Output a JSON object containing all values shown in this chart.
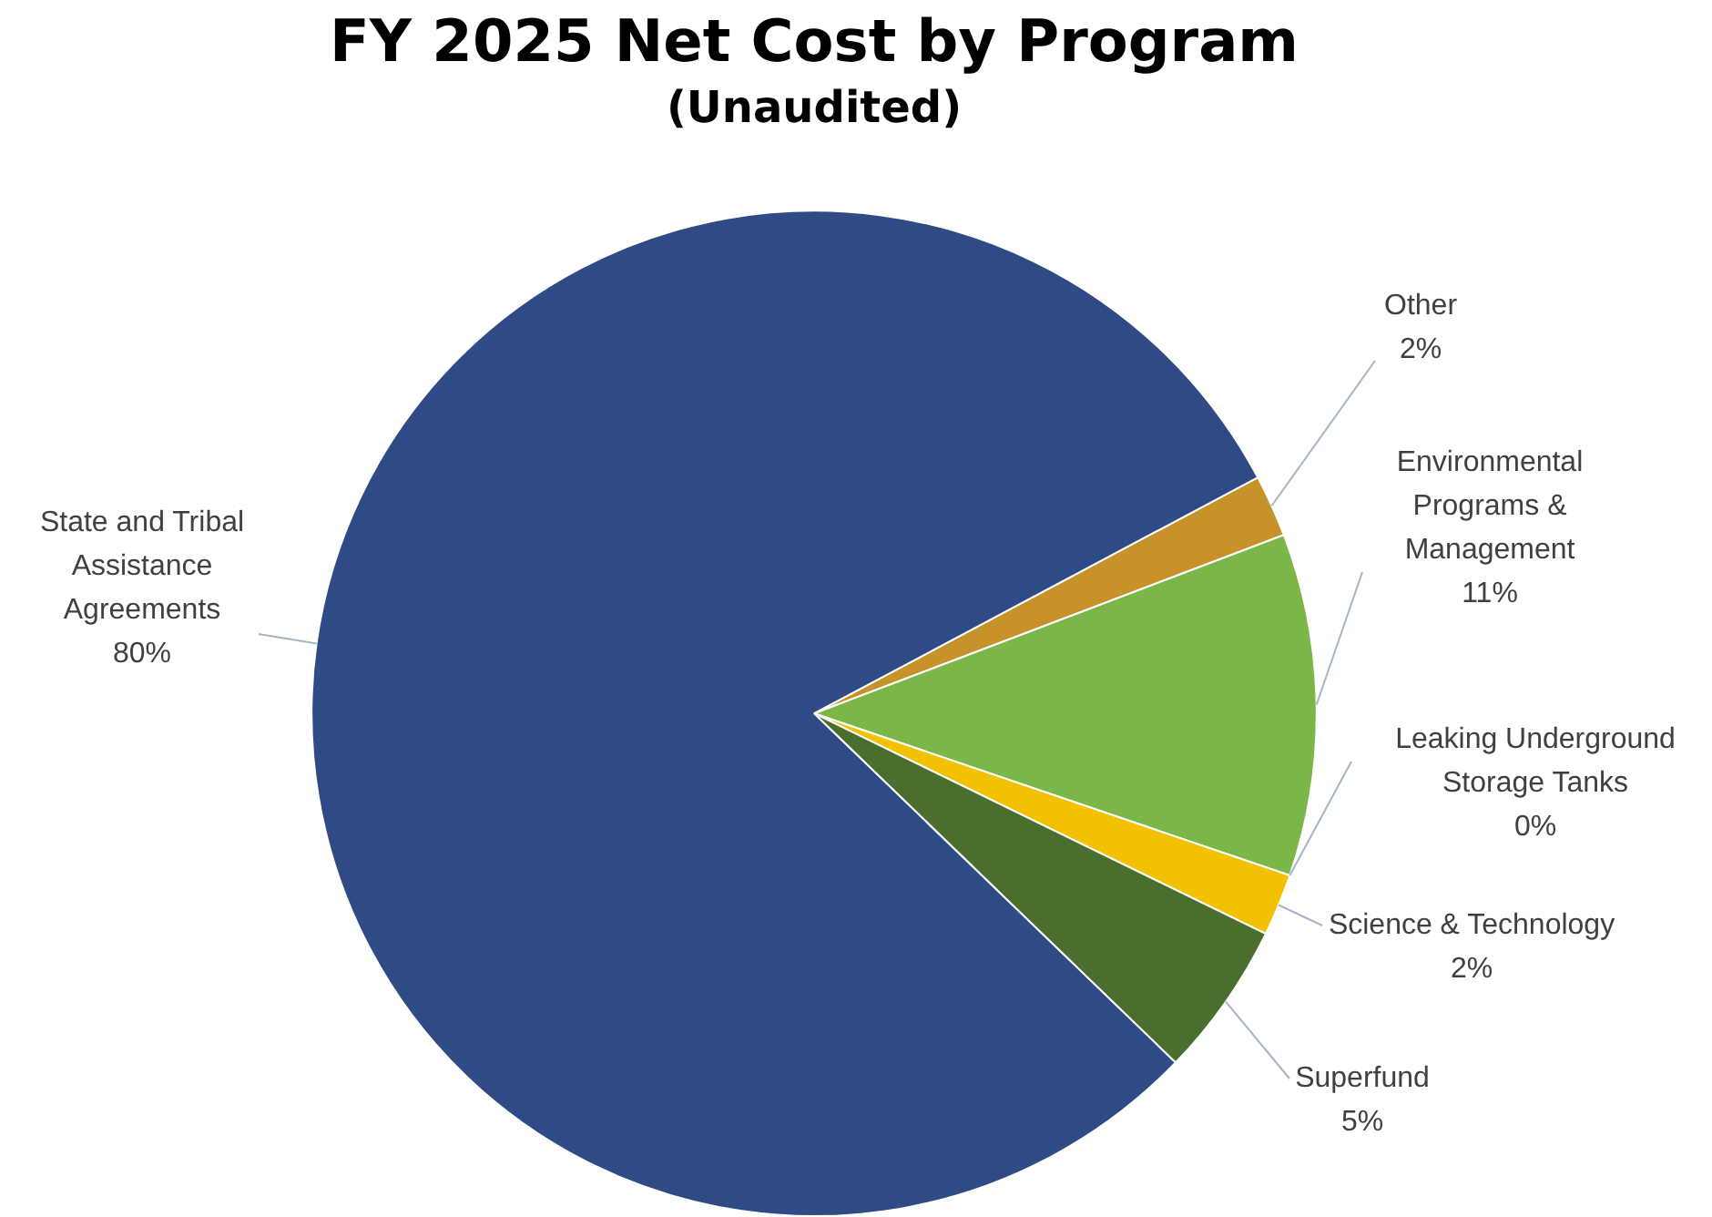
{
  "chart_data": {
    "type": "pie",
    "title": "FY 2025 Net Cost by Program",
    "subtitle": "(Unaudited)",
    "categories": [
      "Other",
      "Environmental Programs & Management",
      "Leaking Underground Storage Tanks",
      "Science & Technology",
      "Superfund",
      "State and Tribal Assistance Agreements"
    ],
    "values": [
      2,
      11,
      0,
      2,
      5,
      80
    ],
    "value_labels": [
      "2%",
      "11%",
      "0%",
      "2%",
      "5%",
      "80%"
    ],
    "colors": [
      "#c8922a",
      "#7ab648",
      "#9aa3b0",
      "#f2c100",
      "#4a6e2e",
      "#2f4b86"
    ],
    "legend": false
  }
}
